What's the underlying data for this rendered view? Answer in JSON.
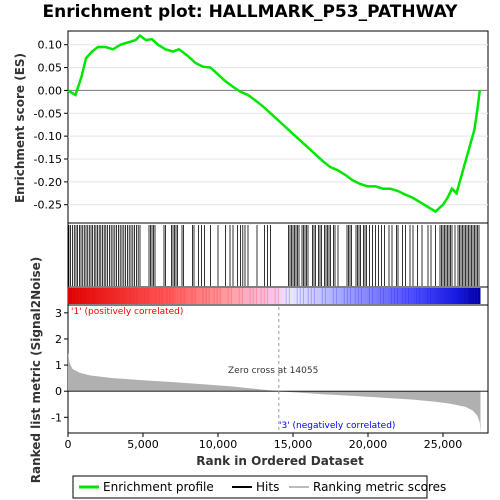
{
  "title": "Enrichment plot: HALLMARK_P53_PATHWAY",
  "ylabel_es": "Enrichment score (ES)",
  "ylabel_metric": "Ranked list metric (Signal2Noise)",
  "xlabel": "Rank in Ordered Dataset",
  "annotations": {
    "positive": "'1' (positively correlated)",
    "negative": "'3' (negatively correlated)",
    "zero_cross": "Zero cross at 14055"
  },
  "legend": {
    "enrichment": "Enrichment profile",
    "hits": "Hits",
    "ranking": "Ranking metric scores"
  },
  "colors": {
    "es_line": "#00e600",
    "hits": "#000000",
    "positive": "#ff0000",
    "negative": "#0000ff",
    "metric_fill": "#b0b0b0",
    "pos_text": "#ff0000",
    "neg_text": "#0000ff"
  },
  "chart_data": [
    {
      "type": "line",
      "name": "enrichment-profile",
      "xlim": [
        0,
        28000
      ],
      "ylim": [
        -0.29,
        0.13
      ],
      "yticks": [
        0.1,
        0.05,
        0.0,
        -0.05,
        -0.1,
        -0.15,
        -0.2,
        -0.25
      ],
      "ytick_labels": [
        "0.10",
        "0.05",
        "0.00",
        "-0.05",
        "-0.10",
        "-0.15",
        "-0.20",
        "-0.25"
      ],
      "x": [
        0,
        500,
        900,
        1200,
        1600,
        2000,
        2500,
        3000,
        3500,
        4000,
        4500,
        4800,
        5200,
        5600,
        6000,
        6500,
        7000,
        7400,
        8000,
        8500,
        9000,
        9500,
        10000,
        10500,
        11000,
        11500,
        12000,
        12500,
        13000,
        13500,
        14000,
        14500,
        15000,
        15500,
        16000,
        16500,
        17000,
        17500,
        18000,
        18500,
        19000,
        19500,
        20000,
        20500,
        21000,
        21500,
        22000,
        22500,
        23000,
        23500,
        24000,
        24500,
        25000,
        25300,
        25600,
        25900,
        26200,
        26500,
        26800,
        27100,
        27300,
        27450
      ],
      "y": [
        0.0,
        -0.01,
        0.03,
        0.07,
        0.085,
        0.095,
        0.095,
        0.09,
        0.1,
        0.105,
        0.11,
        0.12,
        0.11,
        0.112,
        0.1,
        0.09,
        0.085,
        0.09,
        0.075,
        0.06,
        0.052,
        0.05,
        0.035,
        0.02,
        0.008,
        -0.003,
        -0.01,
        -0.022,
        -0.035,
        -0.05,
        -0.065,
        -0.08,
        -0.095,
        -0.11,
        -0.125,
        -0.14,
        -0.155,
        -0.168,
        -0.175,
        -0.185,
        -0.197,
        -0.205,
        -0.21,
        -0.21,
        -0.215,
        -0.215,
        -0.22,
        -0.228,
        -0.235,
        -0.245,
        -0.255,
        -0.265,
        -0.25,
        -0.235,
        -0.215,
        -0.225,
        -0.19,
        -0.155,
        -0.12,
        -0.085,
        -0.04,
        0.0
      ]
    },
    {
      "type": "scatter",
      "name": "hits",
      "x": [
        60,
        170,
        300,
        420,
        530,
        640,
        760,
        870,
        980,
        1090,
        1200,
        1310,
        1420,
        1530,
        1640,
        1750,
        1860,
        1970,
        2080,
        2190,
        2300,
        2410,
        2520,
        2640,
        2760,
        2880,
        3000,
        3120,
        3240,
        3360,
        3480,
        3600,
        3720,
        3840,
        3960,
        4080,
        4200,
        4320,
        4440,
        4560,
        4680,
        4800,
        5400,
        5500,
        5600,
        5700,
        5800,
        6400,
        6500,
        6900,
        7000,
        7100,
        7200,
        7300,
        7600,
        7700,
        8300,
        8400,
        8700,
        8900,
        9100,
        9500,
        10000,
        10500,
        10800,
        11000,
        11300,
        11500,
        11650,
        11800,
        12000,
        12600,
        13100,
        13300,
        13500,
        14700,
        14800,
        14900,
        15000,
        15100,
        15200,
        15300,
        15400,
        15600,
        15700,
        15800,
        15900,
        16000,
        16300,
        16400,
        16500,
        16700,
        16800,
        16900,
        17100,
        17200,
        17300,
        17400,
        17500,
        17700,
        17800,
        18000,
        18600,
        18700,
        18800,
        18900,
        19200,
        19300,
        19400,
        19500,
        19700,
        19800,
        19900,
        20100,
        20300,
        20500,
        20700,
        20900,
        21100,
        21400,
        21600,
        21900,
        22000,
        22300,
        22500,
        22800,
        23000,
        23300,
        23600,
        24000,
        24200,
        24500,
        24800,
        24900,
        25000,
        25100,
        25200,
        25300,
        25400,
        25500,
        25600,
        25800,
        26000,
        26100,
        26200,
        26300,
        26400,
        26500,
        26600,
        26700,
        26800,
        26900,
        27000,
        27100,
        27200,
        27300,
        27400
      ]
    },
    {
      "type": "area",
      "name": "ranking-metric",
      "xlim": [
        0,
        28000
      ],
      "ylim": [
        -1.6,
        3.3
      ],
      "yticks": [
        3,
        2,
        1,
        0,
        -1
      ],
      "ytick_labels": [
        "3",
        "2",
        "1",
        "0",
        "-1"
      ],
      "xticks": [
        0,
        5000,
        10000,
        15000,
        20000,
        25000
      ],
      "xtick_labels": [
        "0",
        "5,000",
        "10,000",
        "15,000",
        "20,000",
        "25,000"
      ],
      "x": [
        0,
        100,
        300,
        800,
        1500,
        3000,
        5000,
        7000,
        9000,
        11000,
        12500,
        14055,
        15500,
        17000,
        19000,
        21000,
        23000,
        24500,
        25500,
        26500,
        27000,
        27300,
        27450,
        27500
      ],
      "y": [
        1.5,
        1.1,
        0.85,
        0.7,
        0.6,
        0.5,
        0.42,
        0.35,
        0.27,
        0.18,
        0.09,
        0.0,
        -0.06,
        -0.12,
        -0.18,
        -0.25,
        -0.32,
        -0.4,
        -0.48,
        -0.6,
        -0.75,
        -0.95,
        -1.2,
        -1.6
      ]
    }
  ]
}
